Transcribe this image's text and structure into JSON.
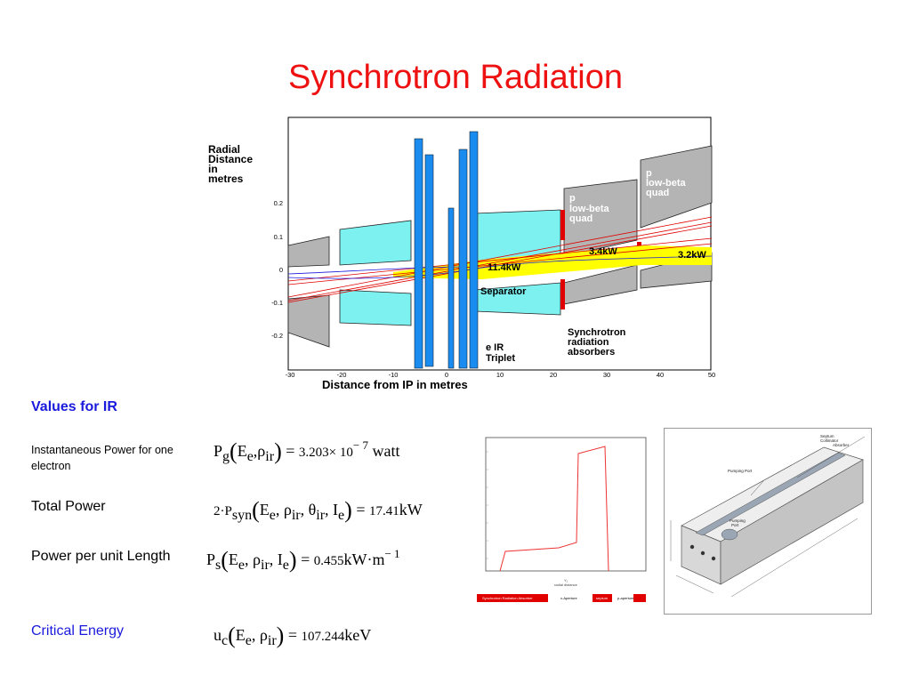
{
  "slide": {
    "title": "Synchrotron Radiation"
  },
  "ir_diagram": {
    "y_label_lines": [
      "Radial",
      "Distance",
      "in",
      "metres"
    ],
    "y_ticks": [
      "0.2",
      "0.1",
      "0",
      "-0.1",
      "-0.2"
    ],
    "x_ticks": [
      "-30",
      "-20",
      "-10",
      "0",
      "10",
      "20",
      "30",
      "40",
      "50"
    ],
    "x_label": "Distance from IP in metres",
    "annotations": {
      "p_quad_1": [
        "p",
        "low-beta",
        "quad"
      ],
      "p_quad_2": [
        "p",
        "low-beta",
        "quad"
      ],
      "power_mid": "3.4kW",
      "power_right": "3.2kW",
      "power_center": "11.4kW",
      "separator": "Separator",
      "e_triplet": [
        "e IR",
        "Triplet"
      ],
      "absorbers": [
        "Synchrotron",
        "radiation",
        "absorbers"
      ]
    },
    "colors": {
      "magnet_blue": "#1a8cf0",
      "cyan_region": "#7df0f0",
      "gray_block": "#b4b4b4",
      "beam_yellow": "#ffff00",
      "absorber_red": "#e00000"
    }
  },
  "values": {
    "heading": "Values for IR",
    "rows": [
      {
        "label": "Instantaneous Power for one electron",
        "formula": {
          "symbol": "P",
          "sub": "g",
          "args": [
            "E",
            "e",
            "ρ",
            "ir"
          ],
          "equals": "=",
          "value": "3.203× 10",
          "exp": "− 7",
          "unit": "watt"
        }
      },
      {
        "label": "Total Power",
        "formula": {
          "prefix": "2·P",
          "sub": "syn",
          "args_text": "E_e, ρ_ir, θ_ir, I_e",
          "equals": "=",
          "value": "17.41",
          "unit": "kW"
        }
      },
      {
        "label": "Power per unit Length",
        "formula": {
          "symbol": "P",
          "sub": "s",
          "equals": "=",
          "value": "0.455",
          "unit": "kW·m",
          "exp": "− 1"
        }
      },
      {
        "label": "Critical Energy",
        "formula": {
          "symbol": "u",
          "sub": "c",
          "equals": "=",
          "value": "107.244",
          "unit": "keV"
        }
      }
    ]
  },
  "plot_thumbnail": {
    "x_label_lines": [
      "Y₁",
      "radial distance"
    ],
    "legend": [
      "Synchrotron Radiation Absorber",
      "x-Aperture",
      "septum",
      "p-aperture"
    ]
  },
  "absorber_drawing": {
    "labels": {
      "top": [
        "Septum",
        "Collimator",
        "Absorber"
      ],
      "pumping_port": "Pumping Port",
      "pumping_port_inner": [
        "Pumping",
        "Port"
      ]
    }
  }
}
